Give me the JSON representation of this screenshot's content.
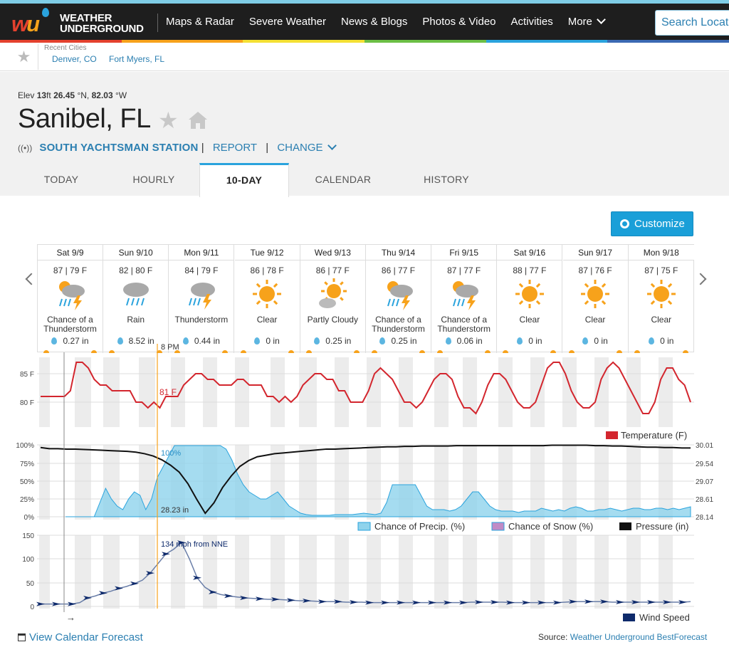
{
  "app": {
    "logo_line1": "WEATHER",
    "logo_line2": "UNDERGROUND"
  },
  "nav": {
    "items": [
      "Maps & Radar",
      "Severe Weather",
      "News & Blogs",
      "Photos & Video",
      "Activities",
      "More"
    ],
    "search_placeholder": "Search Locations"
  },
  "colors": {
    "topstrip": "#7fcde6",
    "bar": [
      "#e4412e",
      "#f7a21b",
      "#f4e034",
      "#6cbf45",
      "#2aa3dd",
      "#3b69b3"
    ],
    "accent": "#2aa3dd",
    "temp_line": "#d3262e",
    "precip_fill": "#8fd3ec",
    "wind": "#0e2a6b"
  },
  "recent": {
    "label": "Recent Cities",
    "cities": [
      "Denver, CO",
      "Fort Myers, FL"
    ]
  },
  "location": {
    "elev_label": "Elev",
    "elev_value": "13",
    "elev_unit": "ft",
    "lat": "26.45",
    "lat_dir": "°N,",
    "lon": "82.03",
    "lon_dir": "°W",
    "city": "Sanibel, FL",
    "station": "SOUTH YACHTSMAN STATION",
    "report": "REPORT",
    "change": "CHANGE"
  },
  "tabs": [
    "TODAY",
    "HOURLY",
    "10-DAY",
    "CALENDAR",
    "HISTORY"
  ],
  "active_tab": "10-DAY",
  "customize_label": "Customize",
  "days": [
    {
      "date": "Sat 9/9",
      "temps": "87 | 79 F",
      "icon": "thunderstorm-chance-icon",
      "cond": "Chance of a Thunderstorm",
      "precip": "0.27 in"
    },
    {
      "date": "Sun 9/10",
      "temps": "82 | 80 F",
      "icon": "rain-icon",
      "cond": "Rain",
      "precip": "8.52 in"
    },
    {
      "date": "Mon 9/11",
      "temps": "84 | 79 F",
      "icon": "thunderstorm-icon",
      "cond": "Thunderstorm",
      "precip": "0.44 in"
    },
    {
      "date": "Tue 9/12",
      "temps": "86 | 78 F",
      "icon": "clear-icon",
      "cond": "Clear",
      "precip": "0 in"
    },
    {
      "date": "Wed 9/13",
      "temps": "86 | 77 F",
      "icon": "partly-cloudy-icon",
      "cond": "Partly Cloudy",
      "precip": "0.25 in"
    },
    {
      "date": "Thu 9/14",
      "temps": "86 | 77 F",
      "icon": "thunderstorm-chance-icon",
      "cond": "Chance of a Thunderstorm",
      "precip": "0.25 in"
    },
    {
      "date": "Fri 9/15",
      "temps": "87 | 77 F",
      "icon": "thunderstorm-chance-icon",
      "cond": "Chance of a Thunderstorm",
      "precip": "0.06 in"
    },
    {
      "date": "Sat 9/16",
      "temps": "88 | 77 F",
      "icon": "clear-icon",
      "cond": "Clear",
      "precip": "0 in"
    },
    {
      "date": "Sun 9/17",
      "temps": "87 | 76 F",
      "icon": "clear-icon",
      "cond": "Clear",
      "precip": "0 in"
    },
    {
      "date": "Mon 9/18",
      "temps": "87 | 75 F",
      "icon": "clear-icon",
      "cond": "Clear",
      "precip": "0 in"
    }
  ],
  "chart_data": [
    {
      "type": "line",
      "name": "temperature",
      "yticks": [
        "85 F",
        "80 F"
      ],
      "ylim": [
        78,
        87
      ],
      "hover_time": "8 PM",
      "hover_value": "81 F",
      "legend": "Temperature (F)",
      "values": [
        81,
        81,
        81,
        81,
        81,
        82,
        87,
        87,
        86,
        84,
        83,
        83,
        82,
        82,
        82,
        82,
        80,
        80,
        79,
        80,
        79,
        81,
        81,
        81,
        83,
        84,
        85,
        85,
        84,
        84,
        83,
        83,
        83,
        84,
        84,
        83,
        83,
        83,
        81,
        81,
        80,
        81,
        80,
        81,
        83,
        84,
        85,
        85,
        84,
        84,
        82,
        82,
        80,
        80,
        80,
        82,
        85,
        86,
        85,
        84,
        82,
        80,
        80,
        79,
        80,
        82,
        84,
        85,
        85,
        84,
        81,
        79,
        79,
        78,
        80,
        83,
        85,
        85,
        84,
        82,
        80,
        79,
        79,
        80,
        83,
        86,
        87,
        87,
        85,
        82,
        80,
        79,
        79,
        80,
        84,
        86,
        87,
        86,
        84,
        82,
        80,
        78,
        78,
        80,
        84,
        86,
        86,
        84,
        83,
        80
      ]
    },
    {
      "type": "area",
      "name": "precip_pressure",
      "y_left_ticks": [
        "100%",
        "75%",
        "50%",
        "25%",
        "0%"
      ],
      "y_right_ticks": [
        "30.01",
        "29.54",
        "29.07",
        "28.61",
        "28.14"
      ],
      "hover_precip": "100%",
      "hover_pressure": "28.23 in",
      "legend": [
        "Chance of Precip. (%)",
        "Chance of Snow (%)",
        "Pressure (in)"
      ],
      "precip": [
        0,
        0,
        0,
        0,
        0,
        0,
        20,
        40,
        25,
        15,
        10,
        25,
        35,
        30,
        10,
        25,
        55,
        70,
        85,
        100,
        100,
        100,
        100,
        100,
        100,
        100,
        100,
        100,
        95,
        80,
        60,
        45,
        35,
        30,
        25,
        25,
        30,
        35,
        25,
        15,
        10,
        5,
        3,
        2,
        2,
        2,
        2,
        3,
        3,
        3,
        3,
        4,
        5,
        4,
        3,
        5,
        20,
        45,
        45,
        45,
        45,
        45,
        30,
        15,
        10,
        10,
        10,
        8,
        10,
        15,
        25,
        35,
        35,
        25,
        15,
        10,
        8,
        8,
        8,
        6,
        8,
        8,
        8,
        12,
        10,
        8,
        10,
        8,
        12,
        14,
        12,
        8,
        8,
        10,
        10,
        12,
        10,
        8,
        10,
        12,
        12,
        10,
        10,
        12,
        12,
        10,
        12,
        10,
        12,
        14
      ],
      "pressure": [
        29.94,
        29.91,
        29.91,
        29.9,
        29.9,
        29.89,
        29.88,
        29.87,
        29.86,
        29.85,
        29.84,
        29.82,
        29.78,
        29.72,
        29.62,
        29.48,
        29.3,
        29.0,
        28.6,
        28.23,
        28.5,
        28.9,
        29.2,
        29.45,
        29.6,
        29.7,
        29.74,
        29.78,
        29.8,
        29.82,
        29.84,
        29.86,
        29.88,
        29.9,
        29.9,
        29.91,
        29.92,
        29.93,
        29.94,
        29.95,
        29.96,
        29.96,
        29.97,
        29.97,
        29.98,
        29.98,
        29.98,
        29.98,
        29.99,
        29.99,
        29.99,
        29.99,
        29.99,
        29.99,
        29.99,
        29.99,
        29.99,
        29.99,
        29.99,
        30.0,
        30.0,
        30.0,
        30.0,
        30.0,
        29.99,
        29.99,
        29.98,
        29.98,
        29.97,
        29.96,
        29.95,
        29.95,
        29.94,
        29.94,
        29.93,
        29.93
      ]
    },
    {
      "type": "line",
      "name": "wind",
      "yticks": [
        "150",
        "100",
        "50",
        "0"
      ],
      "ylim": [
        0,
        150
      ],
      "hover_value": "134 mph from NNE",
      "legend": "Wind Speed",
      "values": [
        5,
        5,
        5,
        5,
        5,
        8,
        18,
        22,
        28,
        32,
        38,
        42,
        48,
        55,
        70,
        90,
        110,
        120,
        134,
        100,
        60,
        40,
        30,
        25,
        22,
        20,
        18,
        17,
        16,
        15,
        15,
        14,
        13,
        12,
        12,
        11,
        10,
        10,
        10,
        9,
        9,
        9,
        8,
        8,
        8,
        8,
        8,
        8,
        8,
        8,
        8,
        8,
        8,
        8,
        8,
        9,
        9,
        9,
        9,
        9,
        8,
        8,
        8,
        8,
        8,
        8,
        8,
        9,
        10,
        10,
        10,
        10,
        10,
        9,
        9,
        9,
        9,
        9,
        9,
        9,
        9,
        9,
        9,
        10
      ]
    }
  ],
  "footer": {
    "calendar_link": "View Calendar Forecast",
    "source_label": "Source:",
    "source_value": "Weather Underground BestForecast"
  }
}
